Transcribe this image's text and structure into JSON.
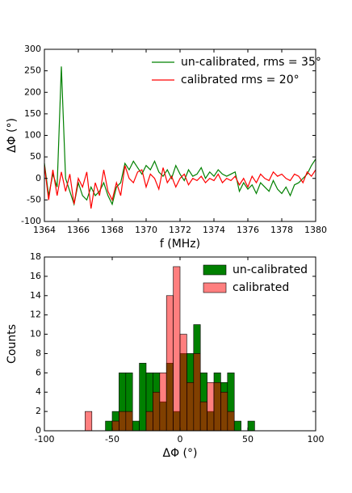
{
  "chart_data": [
    {
      "type": "line",
      "xlabel": "f (MHz)",
      "ylabel": "ΔΦ (°)",
      "xlim": [
        1364,
        1380
      ],
      "ylim": [
        -100,
        300
      ],
      "xticks": [
        1364,
        1366,
        1368,
        1370,
        1372,
        1374,
        1376,
        1378,
        1380
      ],
      "yticks": [
        -100,
        -50,
        0,
        50,
        100,
        150,
        200,
        250,
        300
      ],
      "legend": "upper right",
      "x": [
        1364,
        1364.25,
        1364.5,
        1364.75,
        1365,
        1365.25,
        1365.5,
        1365.75,
        1366,
        1366.25,
        1366.5,
        1366.75,
        1367,
        1367.25,
        1367.5,
        1367.75,
        1368,
        1368.25,
        1368.5,
        1368.75,
        1369,
        1369.25,
        1369.5,
        1369.75,
        1370,
        1370.25,
        1370.5,
        1370.75,
        1371,
        1371.25,
        1371.5,
        1371.75,
        1372,
        1372.25,
        1372.5,
        1372.75,
        1373,
        1373.25,
        1373.5,
        1373.75,
        1374,
        1374.25,
        1374.5,
        1374.75,
        1375,
        1375.25,
        1375.5,
        1375.75,
        1376,
        1376.25,
        1376.5,
        1376.75,
        1377,
        1377.25,
        1377.5,
        1377.75,
        1378,
        1378.25,
        1378.5,
        1378.75,
        1379,
        1379.25,
        1379.5,
        1379.75,
        1380
      ],
      "series": [
        {
          "name": "un-calibrated, rms = 35°",
          "color": "#008000",
          "values": [
            35,
            -40,
            10,
            -20,
            260,
            0,
            -30,
            -60,
            -10,
            -40,
            -50,
            -20,
            -40,
            -30,
            -10,
            -40,
            -60,
            -20,
            -10,
            35,
            20,
            40,
            25,
            10,
            30,
            20,
            40,
            15,
            5,
            20,
            0,
            30,
            10,
            -5,
            20,
            5,
            10,
            25,
            0,
            15,
            5,
            20,
            10,
            5,
            10,
            15,
            -30,
            -10,
            -25,
            -15,
            -35,
            -10,
            -20,
            -30,
            -5,
            -25,
            -35,
            -20,
            -40,
            -15,
            -10,
            0,
            10,
            30,
            45
          ]
        },
        {
          "name": "calibrated rms = 20°",
          "color": "#ff0000",
          "values": [
            30,
            -50,
            20,
            -40,
            15,
            -30,
            10,
            -60,
            0,
            -20,
            15,
            -70,
            -10,
            -40,
            20,
            -30,
            -50,
            -10,
            -40,
            30,
            0,
            -10,
            15,
            20,
            -20,
            10,
            0,
            -25,
            25,
            -10,
            5,
            -20,
            0,
            10,
            -15,
            0,
            -5,
            5,
            -10,
            0,
            -5,
            10,
            -10,
            0,
            -5,
            5,
            -15,
            0,
            -20,
            5,
            -10,
            10,
            0,
            -5,
            15,
            5,
            10,
            0,
            -5,
            10,
            5,
            -10,
            15,
            5,
            20
          ]
        }
      ]
    },
    {
      "type": "histogram",
      "xlabel": "ΔΦ (°)",
      "ylabel": "Counts",
      "xlim": [
        -100,
        100
      ],
      "ylim": [
        0,
        18
      ],
      "xticks": [
        -100,
        -50,
        0,
        50,
        100
      ],
      "yticks": [
        0,
        2,
        4,
        6,
        8,
        10,
        12,
        14,
        16,
        18
      ],
      "legend": "upper right",
      "bins": [
        -70,
        -65,
        -60,
        -55,
        -50,
        -45,
        -40,
        -35,
        -30,
        -25,
        -20,
        -15,
        -10,
        -5,
        0,
        5,
        10,
        15,
        20,
        25,
        30,
        35,
        40,
        45,
        50,
        55
      ],
      "series": [
        {
          "name": "un-calibrated",
          "color": "#008000",
          "opacity": 1,
          "values": [
            0,
            0,
            0,
            1,
            2,
            6,
            6,
            1,
            7,
            6,
            6,
            3,
            7,
            2,
            8,
            8,
            11,
            6,
            2,
            6,
            5,
            6,
            1,
            0,
            1
          ]
        },
        {
          "name": "calibrated",
          "color": "#ff0000",
          "opacity": 0.5,
          "values": [
            2,
            0,
            0,
            0,
            1,
            2,
            2,
            0,
            0,
            2,
            4,
            6,
            14,
            17,
            10,
            5,
            8,
            3,
            5,
            5,
            4,
            2,
            0,
            0,
            0
          ]
        }
      ]
    }
  ]
}
